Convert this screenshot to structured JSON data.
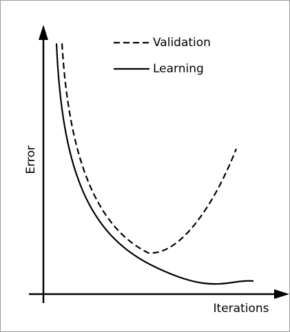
{
  "chart_data": {
    "type": "line",
    "y_label": "Error",
    "x_label": "Iterations",
    "series": [
      {
        "name": "Validation",
        "style": "dashed"
      },
      {
        "name": "Learning",
        "style": "solid"
      }
    ]
  }
}
